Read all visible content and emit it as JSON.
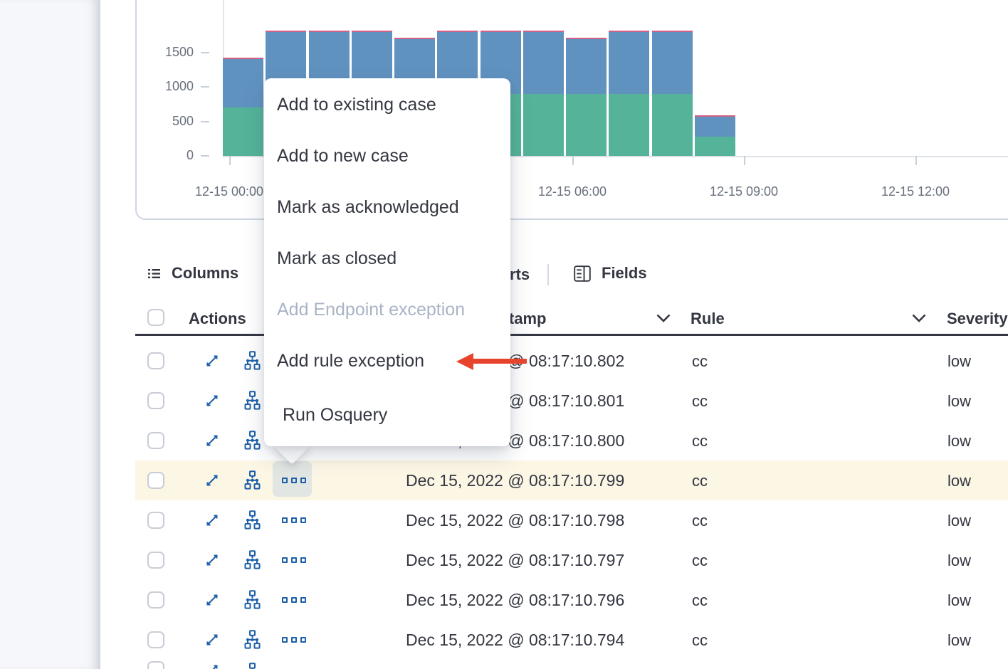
{
  "colors": {
    "text": "#343741",
    "icon_blue": "#1d5fa8",
    "disabled_text": "#a9b4c6",
    "row_highlight": "#fcf6e5",
    "header_rule": "#343741",
    "panel_border": "#cfd5e2",
    "axis_label": "#69707d",
    "annotation_red": "#e8432d",
    "bar_green": "#54B399",
    "bar_blue": "#6092C0",
    "bar_pink": "#D36086"
  },
  "chart_data": {
    "type": "bar",
    "stacked": true,
    "title": "",
    "xlabel": "",
    "ylabel": "",
    "x": [
      "12-15 00:00",
      "12-15 00:45",
      "12-15 01:30",
      "12-15 02:15",
      "12-15 03:00",
      "12-15 03:45",
      "12-15 04:30",
      "12-15 05:15",
      "12-15 06:00",
      "12-15 06:45",
      "12-15 07:30",
      "12-15 08:15"
    ],
    "series": [
      {
        "name": "stack-bottom-green",
        "color": "#54B399",
        "values": [
          700,
          900,
          900,
          900,
          900,
          900,
          900,
          900,
          900,
          900,
          900,
          280
        ]
      },
      {
        "name": "stack-middle-blue",
        "color": "#6092C0",
        "values": [
          700,
          900,
          900,
          900,
          800,
          900,
          900,
          900,
          800,
          900,
          900,
          290
        ]
      },
      {
        "name": "stack-top-pink-sliver",
        "color": "#D36086",
        "values": [
          20,
          20,
          20,
          20,
          20,
          20,
          20,
          20,
          20,
          20,
          20,
          20
        ]
      }
    ],
    "y_ticks": [
      1500,
      1000,
      500,
      0
    ],
    "x_tick_labels": [
      "12-15 00:00",
      "12-15 06:00",
      "12-15 09:00",
      "12-15 12:00"
    ],
    "x_tick_minutes": [
      0,
      360,
      540,
      720
    ],
    "ylim": [
      0,
      1820
    ],
    "grid": false,
    "legend": "none"
  },
  "toolbar": {
    "columns_label": "Columns",
    "occluded_fragment": "rts",
    "fields_label": "Fields",
    "icons": {
      "columns": "list-icon",
      "fields": "fields-browser-icon"
    }
  },
  "context_menu": {
    "items": [
      {
        "label": "Add to existing case",
        "enabled": true
      },
      {
        "label": "Add to new case",
        "enabled": true
      },
      {
        "label": "Mark as acknowledged",
        "enabled": true
      },
      {
        "label": "Mark as closed",
        "enabled": true
      },
      {
        "label": "Add Endpoint exception",
        "enabled": false
      },
      {
        "label": "Add rule exception",
        "enabled": true
      },
      {
        "label": "Run Osquery",
        "enabled": true
      }
    ]
  },
  "annotation": {
    "type": "arrow-pointing-left",
    "points_at": "Add rule exception",
    "color": "#e8432d"
  },
  "table": {
    "headers": {
      "actions": "Actions",
      "timestamp": "@timestamp",
      "rule": "Rule",
      "severity": "Severity"
    },
    "row_icons": [
      "expand-icon",
      "analyze-event-icon",
      "more-actions-icon"
    ],
    "rows": [
      {
        "timestamp": "Dec 15, 2022 @ 08:17:10.802",
        "rule": "cc",
        "severity": "low",
        "highlighted": false
      },
      {
        "timestamp": "Dec 15, 2022 @ 08:17:10.801",
        "rule": "cc",
        "severity": "low",
        "highlighted": false
      },
      {
        "timestamp": "Dec 15, 2022 @ 08:17:10.800",
        "rule": "cc",
        "severity": "low",
        "highlighted": false
      },
      {
        "timestamp": "Dec 15, 2022 @ 08:17:10.799",
        "rule": "cc",
        "severity": "low",
        "highlighted": true
      },
      {
        "timestamp": "Dec 15, 2022 @ 08:17:10.798",
        "rule": "cc",
        "severity": "low",
        "highlighted": false
      },
      {
        "timestamp": "Dec 15, 2022 @ 08:17:10.797",
        "rule": "cc",
        "severity": "low",
        "highlighted": false
      },
      {
        "timestamp": "Dec 15, 2022 @ 08:17:10.796",
        "rule": "cc",
        "severity": "low",
        "highlighted": false
      },
      {
        "timestamp": "Dec 15, 2022 @ 08:17:10.794",
        "rule": "cc",
        "severity": "low",
        "highlighted": false
      },
      {
        "partial": true
      }
    ]
  }
}
